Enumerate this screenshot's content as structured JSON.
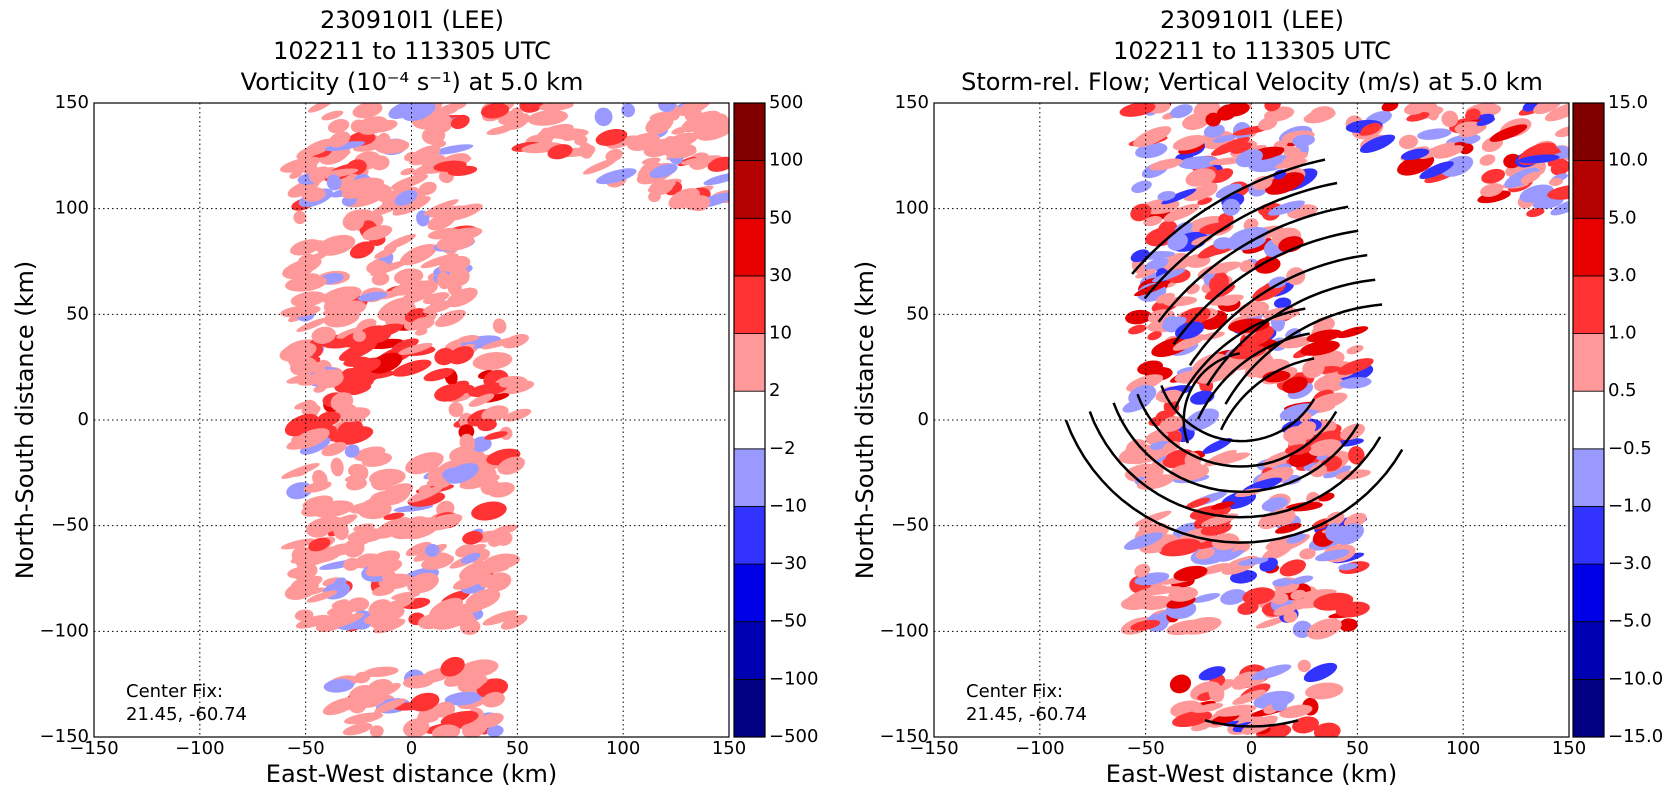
{
  "chart_data": [
    {
      "type": "contour",
      "title": [
        "230910I1 (LEE)",
        "102211 to 113305 UTC",
        "Vorticity (10⁻⁴ s⁻¹) at 5.0 km"
      ],
      "xlabel": "East-West distance (km)",
      "ylabel": "North-South distance (km)",
      "xlim": [
        -150,
        150
      ],
      "ylim": [
        -150,
        150
      ],
      "xticks": [
        {
          "value": -150,
          "label": "−150"
        },
        {
          "value": -100,
          "label": "−100"
        },
        {
          "value": -50,
          "label": "−50"
        },
        0,
        50,
        100,
        150
      ],
      "yticks": [
        {
          "value": -150,
          "label": "−150"
        },
        {
          "value": -100,
          "label": "−100"
        },
        {
          "value": -50,
          "label": "−50"
        },
        0,
        50,
        100,
        150
      ],
      "grid": true,
      "annotation": [
        "Center Fix:",
        "21.45, -60.74"
      ],
      "levels": [
        {
          "value": -500,
          "label": "−500"
        },
        {
          "value": -100,
          "label": "−100"
        },
        {
          "value": -50,
          "label": "−50"
        },
        {
          "value": -30,
          "label": "−30"
        },
        {
          "value": -10,
          "label": "−10"
        },
        {
          "value": -2,
          "label": "−2"
        },
        2,
        10,
        30,
        50,
        100,
        500
      ],
      "colors": [
        "#000080",
        "#0000b3",
        "#0000e6",
        "#3333ff",
        "#9999ff",
        "#ffffff",
        "#ff9999",
        "#ff3333",
        "#e60000",
        "#b30000",
        "#800000"
      ]
    },
    {
      "type": "contour",
      "title": [
        "230910I1 (LEE)",
        "102211 to 113305 UTC",
        "Storm-rel. Flow; Vertical Velocity (m/s) at 5.0 km"
      ],
      "xlabel": "East-West distance (km)",
      "ylabel": "North-South distance (km)",
      "xlim": [
        -150,
        150
      ],
      "ylim": [
        -150,
        150
      ],
      "xticks": [
        {
          "value": -150,
          "label": "−150"
        },
        {
          "value": -100,
          "label": "−100"
        },
        {
          "value": -50,
          "label": "−50"
        },
        0,
        50,
        100,
        150
      ],
      "yticks": [
        {
          "value": -150,
          "label": "−150"
        },
        {
          "value": -100,
          "label": "−100"
        },
        {
          "value": -50,
          "label": "−50"
        },
        0,
        50,
        100,
        150
      ],
      "grid": true,
      "streamlines": true,
      "annotation": [
        "Center Fix:",
        "21.45, -60.74"
      ],
      "levels": [
        {
          "value": -15,
          "label": "−15.0"
        },
        {
          "value": -10,
          "label": "−10.0"
        },
        {
          "value": -5,
          "label": "−5.0"
        },
        {
          "value": -3,
          "label": "−3.0"
        },
        {
          "value": -1,
          "label": "−1.0"
        },
        {
          "value": -0.5,
          "label": "−0.5"
        },
        0.5,
        {
          "value": 1,
          "label": "1.0"
        },
        {
          "value": 3,
          "label": "3.0"
        },
        {
          "value": 5,
          "label": "5.0"
        },
        {
          "value": 10,
          "label": "10.0"
        },
        {
          "value": 15,
          "label": "15.0"
        }
      ],
      "colors": [
        "#000080",
        "#0000b3",
        "#0000e6",
        "#3333ff",
        "#9999ff",
        "#ffffff",
        "#ff9999",
        "#ff3333",
        "#e60000",
        "#b30000",
        "#800000"
      ]
    }
  ]
}
